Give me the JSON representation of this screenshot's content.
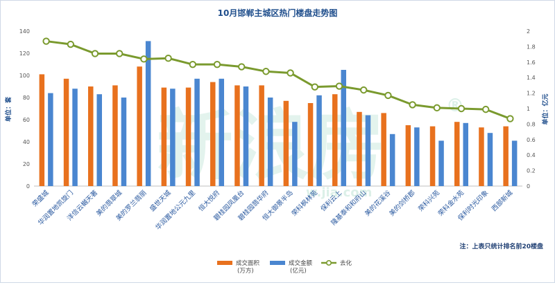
{
  "chart_data": {
    "type": "bar",
    "title": "10月邯郸主城区热门楼盘走势图",
    "ylabel_left": "单位：套",
    "ylabel_right": "单位：亿元",
    "ylim_left": [
      0,
      140
    ],
    "yticks_left": [
      0,
      20,
      40,
      60,
      80,
      100,
      120,
      140
    ],
    "ylim_right": [
      0,
      2
    ],
    "yticks_right": [
      "0",
      "0.2",
      "0.4",
      "0.6",
      "0.8",
      "1",
      "1.2",
      "1.4",
      "1.6",
      "1.8",
      "2"
    ],
    "grid": false,
    "legend_position": "bottom",
    "categories": [
      "荣盛城",
      "华润置地凯旋门",
      "洋信云樾天著",
      "美的翡翠城",
      "美的罗兰翡丽",
      "盛世天城",
      "华润置地公元九里",
      "恒大悦府",
      "碧桂园凤凰台",
      "碧桂园翡华府",
      "恒大御景半岛",
      "荣科枫林苑",
      "保利云上",
      "隆基泰和和府山",
      "美的花溪谷",
      "美的剑桥郡",
      "荣科兴苑",
      "荣科金水苑",
      "保利时光印象",
      "西部新城"
    ],
    "series": [
      {
        "name": "成交面积\n(万方)",
        "axis": "left",
        "color": "#e8711e",
        "values": [
          101,
          97,
          90,
          91,
          108,
          89,
          89,
          94,
          91,
          91,
          77,
          75,
          83,
          67,
          66,
          55,
          54,
          58,
          53,
          54
        ]
      },
      {
        "name": "成交金额\n(亿元)",
        "axis": "left",
        "color": "#4a86d0",
        "values": [
          84,
          88,
          83,
          80,
          131,
          88,
          97,
          97,
          90,
          80,
          58,
          82,
          105,
          64,
          47,
          53,
          41,
          57,
          48,
          41
        ]
      },
      {
        "name": "去化",
        "axis": "right",
        "type": "line",
        "color": "#7a9a2e",
        "values": [
          1.87,
          1.83,
          1.71,
          1.71,
          1.64,
          1.65,
          1.57,
          1.57,
          1.54,
          1.48,
          1.46,
          1.28,
          1.29,
          1.24,
          1.17,
          1.05,
          1.01,
          1.0,
          0.99,
          0.87
        ]
      }
    ],
    "note": "注：上表只统计排名前20楼盘"
  },
  "watermark": {
    "main": "新浪房",
    "reg": "®",
    "url": "w.jia.com"
  },
  "colors": {
    "title": "#1f4e8c",
    "bar_area": "#e8711e",
    "bar_amount": "#4a86d0",
    "line": "#7a9a2e",
    "axis": "#999999"
  }
}
